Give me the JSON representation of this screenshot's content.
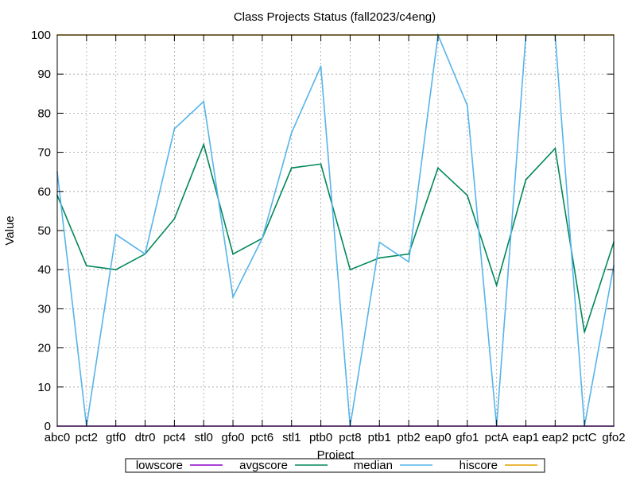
{
  "chart_data": {
    "type": "line",
    "title": "Class Projects Status (fall2023/c4eng)",
    "xlabel": "Project",
    "ylabel": "Value",
    "ylim": [
      0,
      100
    ],
    "yticks": [
      0,
      10,
      20,
      30,
      40,
      50,
      60,
      70,
      80,
      90,
      100
    ],
    "grid": true,
    "legend_position": "bottom",
    "categories": [
      "abc0",
      "pct2",
      "gtf0",
      "dtr0",
      "pct4",
      "stl0",
      "gfo0",
      "pct6",
      "stl1",
      "ptb0",
      "pct8",
      "ptb1",
      "ptb2",
      "eap0",
      "gfo1",
      "pctA",
      "eap1",
      "eap2",
      "pctC",
      "gfo2"
    ],
    "series": [
      {
        "name": "lowscore",
        "color": "#8b00c8",
        "values": [
          0,
          0,
          0,
          0,
          0,
          0,
          0,
          0,
          0,
          0,
          0,
          0,
          0,
          0,
          0,
          0,
          0,
          0,
          0,
          0
        ]
      },
      {
        "name": "avgscore",
        "color": "#00875a",
        "values": [
          59,
          41,
          40,
          44,
          53,
          72,
          44,
          48,
          66,
          67,
          40,
          43,
          44,
          66,
          59,
          36,
          63,
          71,
          24,
          47
        ]
      },
      {
        "name": "median",
        "color": "#56b4e9",
        "values": [
          65,
          0,
          49,
          44,
          76,
          83,
          33,
          48,
          75,
          92,
          0,
          47,
          42,
          100,
          82,
          0,
          100,
          100,
          0,
          41
        ]
      },
      {
        "name": "hiscore",
        "color": "#e69f00",
        "values": [
          100,
          100,
          100,
          100,
          100,
          100,
          100,
          100,
          100,
          100,
          100,
          100,
          100,
          100,
          100,
          100,
          100,
          100,
          100,
          100
        ]
      }
    ]
  }
}
